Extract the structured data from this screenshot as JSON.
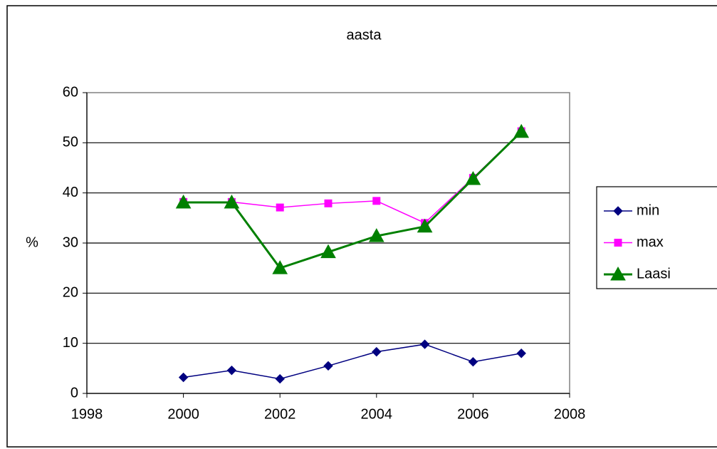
{
  "chart_data": {
    "type": "line",
    "title": "aasta",
    "y_label": "%",
    "x": [
      2000,
      2001,
      2002,
      2003,
      2004,
      2005,
      2006,
      2007
    ],
    "series": [
      {
        "name": "min",
        "color": "#000080",
        "marker": "diamond",
        "values": [
          3.2,
          4.6,
          2.9,
          5.5,
          8.3,
          9.8,
          6.3,
          8.0
        ]
      },
      {
        "name": "max",
        "color": "#ff00ff",
        "marker": "square",
        "values": [
          38.2,
          38.2,
          37.1,
          37.9,
          38.4,
          34.0,
          43.0,
          52.3
        ]
      },
      {
        "name": "Laasi",
        "color": "#008000",
        "marker": "triangle",
        "values": [
          38.1,
          38.1,
          25.0,
          28.2,
          31.4,
          33.3,
          42.8,
          52.2
        ]
      }
    ],
    "xlim": [
      1998,
      2008
    ],
    "xticks": [
      1998,
      2000,
      2002,
      2004,
      2006,
      2008
    ],
    "ylim": [
      0,
      60
    ],
    "yticks": [
      0,
      10,
      20,
      30,
      40,
      50,
      60
    ],
    "grid": true,
    "legend": "right"
  }
}
